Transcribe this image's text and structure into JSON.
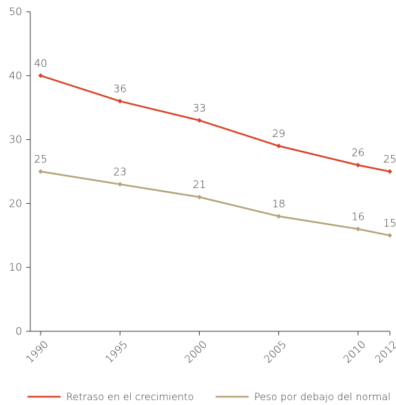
{
  "chart_data": {
    "type": "line",
    "x": [
      1990,
      1995,
      2000,
      2005,
      2010,
      2012
    ],
    "x_tick_labels": [
      "1990",
      "1995",
      "2000",
      "2005",
      "2010",
      "2012"
    ],
    "ylim": [
      0,
      50
    ],
    "y_ticks": [
      0,
      10,
      20,
      30,
      40,
      50
    ],
    "y_tick_labels": [
      "0",
      "10",
      "20",
      "30",
      "40",
      "50"
    ],
    "grid": false,
    "legend_position": "bottom",
    "series": [
      {
        "name": "Retraso en el crecimiento",
        "values": [
          40,
          36,
          33,
          29,
          26,
          25
        ],
        "labels": [
          "40",
          "36",
          "33",
          "29",
          "26",
          "25"
        ],
        "color": "#d9442b"
      },
      {
        "name": "Peso por debajo del normal",
        "values": [
          25,
          23,
          21,
          18,
          16,
          15
        ],
        "labels": [
          "25",
          "23",
          "21",
          "18",
          "16",
          "15"
        ],
        "color": "#b5a47a"
      }
    ],
    "axis_color": "#333333"
  }
}
